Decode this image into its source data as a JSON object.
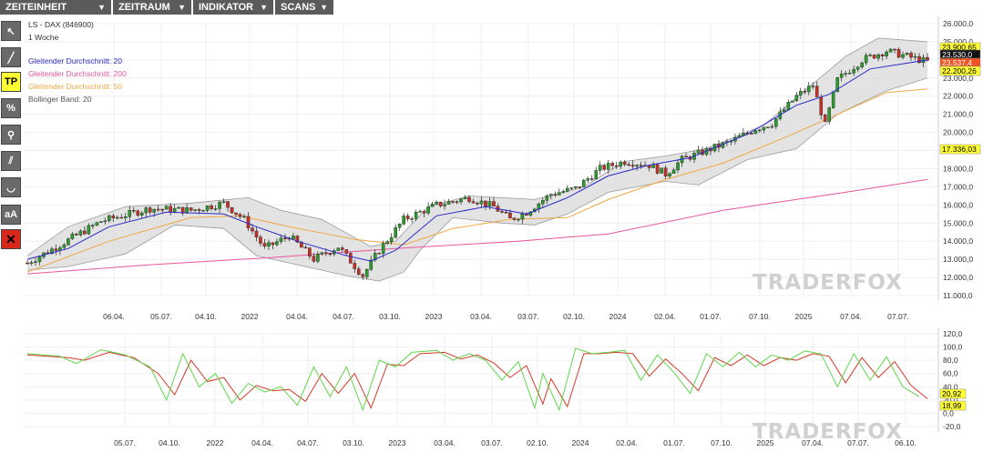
{
  "menu": [
    {
      "label": "ZEITEINHEIT"
    },
    {
      "label": "ZEITRAUM"
    },
    {
      "label": "INDIKATOR"
    },
    {
      "label": "SCANS"
    }
  ],
  "tools": [
    {
      "name": "cursor-tool-icon",
      "glyph": "↖"
    },
    {
      "name": "line-tool-icon",
      "glyph": "╱"
    },
    {
      "name": "tp-tool",
      "glyph": "TP"
    },
    {
      "name": "percent-tool-icon",
      "glyph": "%"
    },
    {
      "name": "zoom-tool-icon",
      "glyph": "⚲"
    },
    {
      "name": "channel-tool-icon",
      "glyph": "⫽"
    },
    {
      "name": "arc-tool-icon",
      "glyph": "◡"
    },
    {
      "name": "text-tool",
      "glyph": "aA"
    },
    {
      "name": "delete-tool-icon",
      "glyph": "✕"
    }
  ],
  "legend": {
    "symbol": "LS - DAX (846900)",
    "period": "1 Woche",
    "sma20": "Gleitender Durchschnitt: 20",
    "sma200": "Gleitender Durchschnitt: 200",
    "sma50": "Gleitender Durchschnitt: 50",
    "bollinger": "Bollinger Band: 20"
  },
  "colors": {
    "sma20": "#2b2bc8",
    "sma200": "#e8559e",
    "sma50": "#f0a844",
    "up": "#2e9b2e",
    "down": "#c8302a",
    "band": "#d9d9d9",
    "stoch_k": "#5fd64c",
    "stoch_d": "#d43a2a"
  },
  "watermark": "TRADERFOX",
  "chart_data": [
    {
      "type": "candlestick",
      "ylim": [
        11000,
        26000
      ],
      "y_ticks": [
        "26.000,0",
        "25.000,0",
        "24.000,0",
        "23.000,0",
        "22.000,0",
        "21.000,0",
        "20.000,0",
        "19.000,0",
        "18.000,0",
        "17.000,0",
        "16.000,0",
        "15.000,0",
        "14.000,0",
        "13.000,0",
        "12.000,0",
        "11.000,0"
      ],
      "x_ticks": [
        "06.04.",
        "05.07.",
        "04.10.",
        "2022",
        "04.04.",
        "04.07.",
        "03.10.",
        "2023",
        "03.04.",
        "03.07.",
        "02.10.",
        "2024",
        "02.04.",
        "01.07.",
        "07.10.",
        "2025",
        "07.04.",
        "07.07."
      ],
      "price_path": [
        [
          0,
          12800
        ],
        [
          8,
          13800
        ],
        [
          18,
          15100
        ],
        [
          30,
          15800
        ],
        [
          40,
          15700
        ],
        [
          48,
          16100
        ],
        [
          53,
          15200
        ],
        [
          58,
          13600
        ],
        [
          64,
          14300
        ],
        [
          70,
          13000
        ],
        [
          76,
          13700
        ],
        [
          82,
          12100
        ],
        [
          86,
          13500
        ],
        [
          92,
          15200
        ],
        [
          100,
          16000
        ],
        [
          108,
          16400
        ],
        [
          114,
          15900
        ],
        [
          118,
          15200
        ],
        [
          122,
          15600
        ],
        [
          128,
          16600
        ],
        [
          134,
          16900
        ],
        [
          140,
          18000
        ],
        [
          146,
          18400
        ],
        [
          152,
          18200
        ],
        [
          156,
          17700
        ],
        [
          160,
          18500
        ],
        [
          166,
          19000
        ],
        [
          172,
          19500
        ],
        [
          178,
          20200
        ],
        [
          182,
          20500
        ],
        [
          188,
          22000
        ],
        [
          192,
          22600
        ],
        [
          195,
          20400
        ],
        [
          198,
          22900
        ],
        [
          204,
          24000
        ],
        [
          210,
          24500
        ],
        [
          215,
          24200
        ],
        [
          220,
          23900
        ]
      ],
      "sma20_path": [
        [
          0,
          13000
        ],
        [
          10,
          13600
        ],
        [
          20,
          14800
        ],
        [
          34,
          15600
        ],
        [
          48,
          15500
        ],
        [
          56,
          14800
        ],
        [
          66,
          14000
        ],
        [
          78,
          13200
        ],
        [
          84,
          12900
        ],
        [
          90,
          13500
        ],
        [
          100,
          15400
        ],
        [
          112,
          15900
        ],
        [
          122,
          15500
        ],
        [
          132,
          16400
        ],
        [
          142,
          17600
        ],
        [
          152,
          18200
        ],
        [
          162,
          18600
        ],
        [
          176,
          19900
        ],
        [
          188,
          21500
        ],
        [
          196,
          22100
        ],
        [
          206,
          23500
        ],
        [
          220,
          24000
        ]
      ],
      "sma50_path": [
        [
          0,
          12300
        ],
        [
          20,
          14000
        ],
        [
          40,
          15300
        ],
        [
          52,
          15400
        ],
        [
          64,
          14800
        ],
        [
          80,
          14100
        ],
        [
          92,
          13800
        ],
        [
          104,
          14700
        ],
        [
          118,
          15200
        ],
        [
          132,
          15300
        ],
        [
          142,
          16300
        ],
        [
          156,
          17400
        ],
        [
          170,
          18300
        ],
        [
          186,
          19800
        ],
        [
          196,
          20800
        ],
        [
          210,
          22200
        ],
        [
          220,
          22400
        ]
      ],
      "sma200_path": [
        [
          0,
          12200
        ],
        [
          30,
          12700
        ],
        [
          60,
          13100
        ],
        [
          90,
          13600
        ],
        [
          120,
          14000
        ],
        [
          142,
          14400
        ],
        [
          170,
          15700
        ],
        [
          200,
          16700
        ],
        [
          220,
          17400
        ]
      ],
      "band_upper_path": [
        [
          0,
          13200
        ],
        [
          10,
          14800
        ],
        [
          24,
          15900
        ],
        [
          40,
          16100
        ],
        [
          54,
          16400
        ],
        [
          62,
          15700
        ],
        [
          72,
          15200
        ],
        [
          84,
          13700
        ],
        [
          90,
          14000
        ],
        [
          98,
          15900
        ],
        [
          108,
          16500
        ],
        [
          116,
          16400
        ],
        [
          124,
          16300
        ],
        [
          136,
          17000
        ],
        [
          146,
          18400
        ],
        [
          156,
          18700
        ],
        [
          166,
          19100
        ],
        [
          180,
          20400
        ],
        [
          190,
          22300
        ],
        [
          200,
          24200
        ],
        [
          208,
          25200
        ],
        [
          220,
          25000
        ]
      ],
      "band_lower_path": [
        [
          0,
          12400
        ],
        [
          10,
          12600
        ],
        [
          24,
          13300
        ],
        [
          36,
          14900
        ],
        [
          48,
          14700
        ],
        [
          56,
          13200
        ],
        [
          66,
          12700
        ],
        [
          78,
          12100
        ],
        [
          86,
          11800
        ],
        [
          92,
          12300
        ],
        [
          96,
          13500
        ],
        [
          104,
          15300
        ],
        [
          116,
          15000
        ],
        [
          124,
          14900
        ],
        [
          132,
          15500
        ],
        [
          142,
          16700
        ],
        [
          156,
          17300
        ],
        [
          164,
          17100
        ],
        [
          176,
          18500
        ],
        [
          188,
          19100
        ],
        [
          198,
          21000
        ],
        [
          210,
          22300
        ],
        [
          220,
          23000
        ]
      ],
      "last_values": [
        "23.900,65",
        "23.530,0",
        "23.537,4",
        "22.200,26",
        "17.336,03"
      ]
    },
    {
      "type": "line",
      "name": "stochastic",
      "ylim": [
        -20,
        120
      ],
      "y_ticks": [
        "120,0",
        "100,0",
        "80,0",
        "60,0",
        "40,0",
        "20,0",
        "0,0",
        "-20,0"
      ],
      "x_ticks": [
        "05.07.",
        "04.10.",
        "2022",
        "04.04.",
        "04.07.",
        "03.10.",
        "2023",
        "03.04.",
        "03.07.",
        "02.10.",
        "2024",
        "02.04.",
        "01.07.",
        "07.10.",
        "2025",
        "07.04.",
        "07.07.",
        "06.10."
      ],
      "k_path": [
        [
          0,
          90
        ],
        [
          8,
          86
        ],
        [
          12,
          75
        ],
        [
          18,
          96
        ],
        [
          24,
          88
        ],
        [
          30,
          70
        ],
        [
          34,
          20
        ],
        [
          38,
          90
        ],
        [
          42,
          40
        ],
        [
          46,
          60
        ],
        [
          50,
          15
        ],
        [
          54,
          45
        ],
        [
          58,
          32
        ],
        [
          62,
          40
        ],
        [
          66,
          12
        ],
        [
          70,
          70
        ],
        [
          74,
          25
        ],
        [
          78,
          70
        ],
        [
          82,
          5
        ],
        [
          86,
          80
        ],
        [
          90,
          70
        ],
        [
          94,
          92
        ],
        [
          100,
          95
        ],
        [
          104,
          80
        ],
        [
          108,
          90
        ],
        [
          112,
          80
        ],
        [
          116,
          50
        ],
        [
          120,
          78
        ],
        [
          124,
          8
        ],
        [
          126,
          60
        ],
        [
          130,
          5
        ],
        [
          134,
          98
        ],
        [
          138,
          90
        ],
        [
          142,
          92
        ],
        [
          146,
          95
        ],
        [
          150,
          50
        ],
        [
          154,
          88
        ],
        [
          158,
          62
        ],
        [
          162,
          30
        ],
        [
          166,
          90
        ],
        [
          170,
          70
        ],
        [
          174,
          92
        ],
        [
          178,
          70
        ],
        [
          182,
          88
        ],
        [
          186,
          80
        ],
        [
          190,
          94
        ],
        [
          194,
          90
        ],
        [
          198,
          40
        ],
        [
          202,
          90
        ],
        [
          206,
          50
        ],
        [
          210,
          85
        ],
        [
          214,
          40
        ],
        [
          218,
          25
        ]
      ],
      "d_path": [
        [
          0,
          88
        ],
        [
          10,
          84
        ],
        [
          14,
          80
        ],
        [
          20,
          92
        ],
        [
          26,
          84
        ],
        [
          32,
          60
        ],
        [
          36,
          28
        ],
        [
          40,
          80
        ],
        [
          44,
          48
        ],
        [
          48,
          54
        ],
        [
          52,
          20
        ],
        [
          56,
          42
        ],
        [
          60,
          34
        ],
        [
          64,
          36
        ],
        [
          68,
          18
        ],
        [
          72,
          60
        ],
        [
          76,
          30
        ],
        [
          80,
          60
        ],
        [
          84,
          8
        ],
        [
          88,
          74
        ],
        [
          92,
          72
        ],
        [
          96,
          90
        ],
        [
          102,
          92
        ],
        [
          106,
          82
        ],
        [
          110,
          88
        ],
        [
          114,
          76
        ],
        [
          118,
          54
        ],
        [
          122,
          72
        ],
        [
          126,
          14
        ],
        [
          128,
          52
        ],
        [
          132,
          10
        ],
        [
          136,
          90
        ],
        [
          140,
          90
        ],
        [
          144,
          92
        ],
        [
          148,
          90
        ],
        [
          152,
          56
        ],
        [
          156,
          82
        ],
        [
          160,
          60
        ],
        [
          164,
          34
        ],
        [
          168,
          84
        ],
        [
          172,
          72
        ],
        [
          176,
          88
        ],
        [
          180,
          72
        ],
        [
          184,
          84
        ],
        [
          188,
          80
        ],
        [
          192,
          90
        ],
        [
          196,
          86
        ],
        [
          200,
          46
        ],
        [
          204,
          84
        ],
        [
          208,
          54
        ],
        [
          212,
          78
        ],
        [
          216,
          42
        ],
        [
          220,
          22
        ]
      ],
      "last_values": [
        "20,92",
        "18,99"
      ]
    }
  ]
}
